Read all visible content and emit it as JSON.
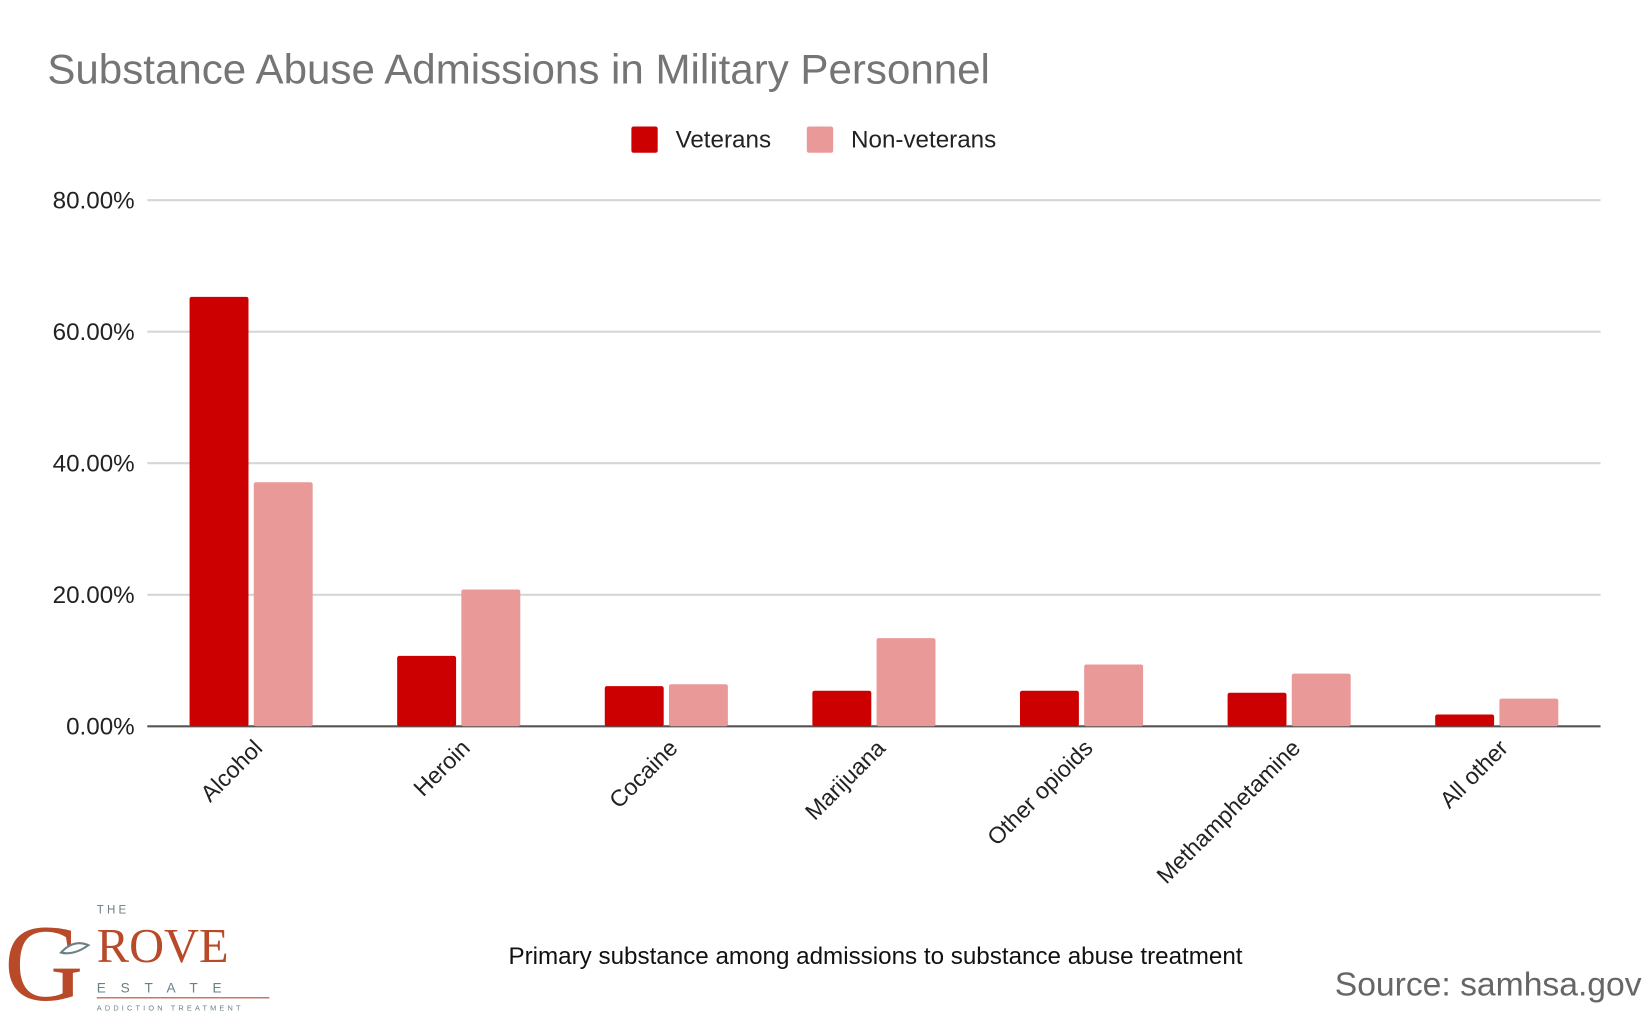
{
  "chart_data": {
    "type": "bar",
    "title": "Substance Abuse Admissions in Military Personnel",
    "xlabel": "Primary substance among admissions to substance abuse treatment",
    "ylabel": "",
    "ylim": [
      0,
      80
    ],
    "yticks": [
      "0.00%",
      "20.00%",
      "40.00%",
      "60.00%",
      "80.00%"
    ],
    "grid": true,
    "legend_position": "top",
    "categories": [
      "Alcohol",
      "Heroin",
      "Cocaine",
      "Marijuana",
      "Other opioids",
      "Methamphetamine",
      "All other"
    ],
    "series": [
      {
        "name": "Veterans",
        "color": "#cc0000",
        "values": [
          65.3,
          10.7,
          6.1,
          5.4,
          5.4,
          5.1,
          1.8
        ]
      },
      {
        "name": "Non-veterans",
        "color": "#ea9999",
        "values": [
          37.1,
          20.8,
          6.4,
          13.4,
          9.4,
          8.0,
          4.2
        ]
      }
    ]
  },
  "source": "Source: samhsa.gov",
  "logo": {
    "text": "THE GROVE ESTATE ADDICTION TREATMENT"
  }
}
